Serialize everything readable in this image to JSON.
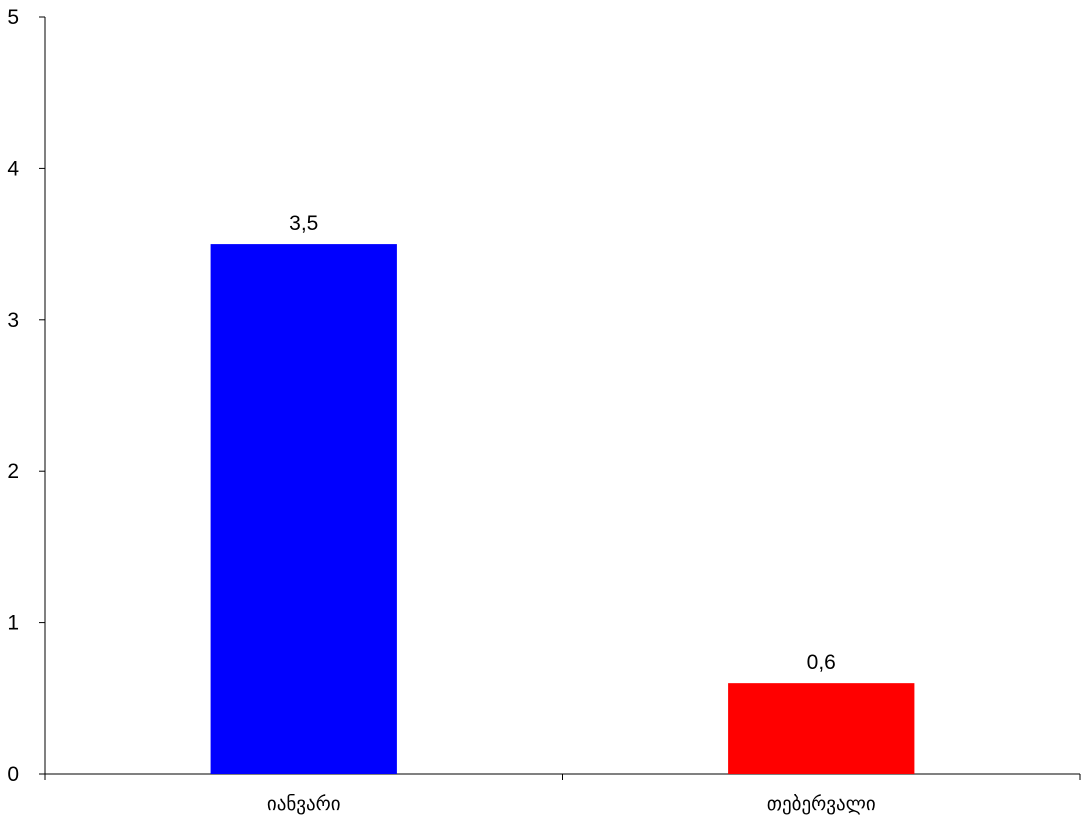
{
  "chart_data": {
    "type": "bar",
    "title": "",
    "xlabel": "",
    "ylabel": "",
    "categories": [
      "იანვარი",
      "თებერვალი"
    ],
    "values": [
      3.5,
      0.6
    ],
    "data_labels": [
      "3,5",
      "0,6"
    ],
    "colors": [
      "#0000FF",
      "#FF0000"
    ],
    "ylim": [
      0,
      5
    ],
    "yticks": [
      0,
      1,
      2,
      3,
      4,
      5
    ],
    "ytick_labels": [
      "0",
      "1",
      "2",
      "3",
      "4",
      "5"
    ],
    "grid": false,
    "legend": "none"
  }
}
